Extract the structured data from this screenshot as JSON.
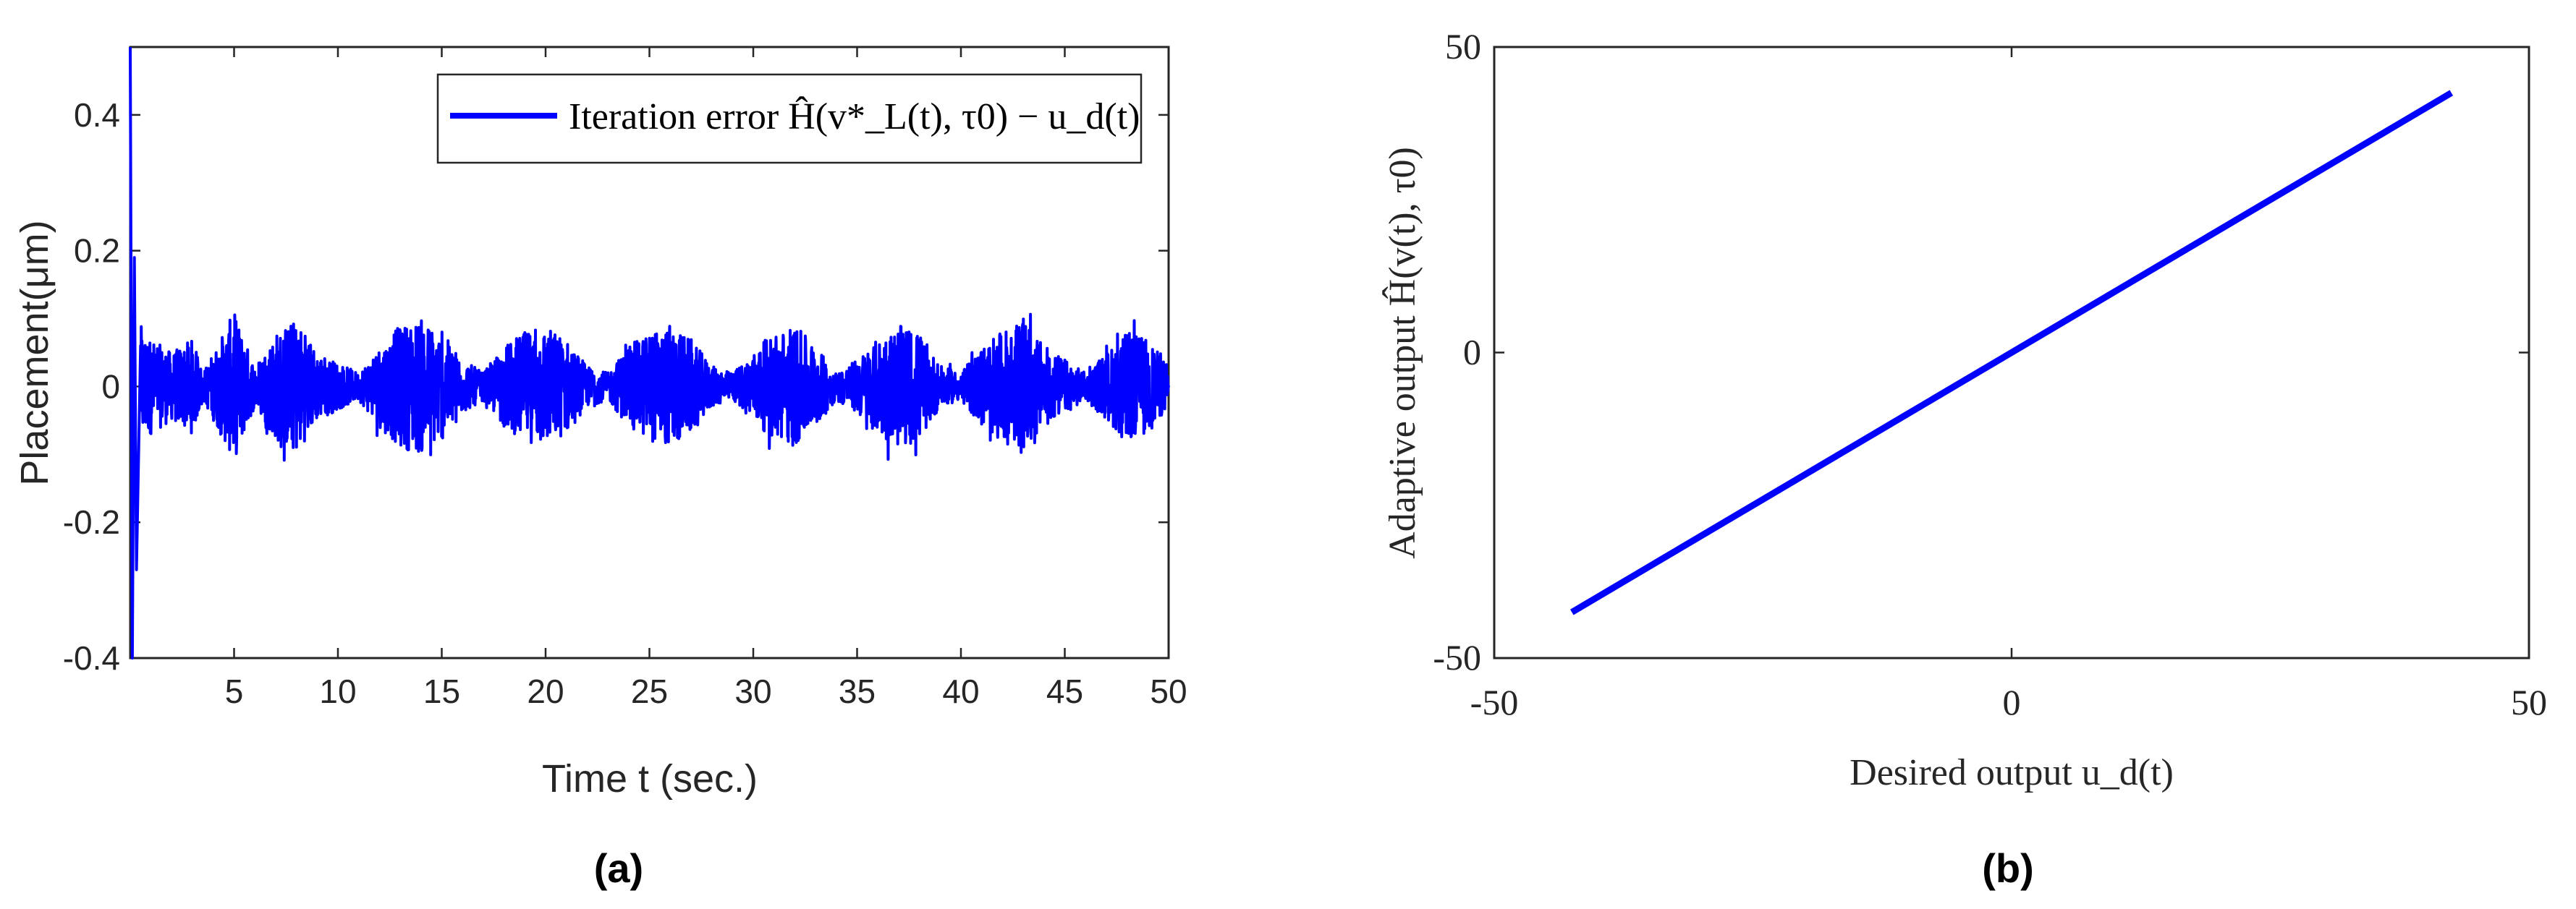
{
  "colors": {
    "series": "#0000FF",
    "axes": "#262626"
  },
  "chart_data": [
    {
      "panel_label": "(a)",
      "type": "line",
      "xlabel": "Time t (sec.)",
      "ylabel": "Placement(μm)",
      "xlim": [
        0,
        50
      ],
      "ylim": [
        -0.4,
        0.5
      ],
      "xticks": [
        5,
        10,
        15,
        20,
        25,
        30,
        35,
        40,
        45,
        50
      ],
      "xtick_labels": [
        "5",
        "10",
        "15",
        "20",
        "25",
        "30",
        "35",
        "40",
        "45",
        "50"
      ],
      "yticks": [
        -0.4,
        -0.2,
        0,
        0.2,
        0.4
      ],
      "ytick_labels": [
        "-0.4",
        "-0.2",
        "0",
        "0.2",
        "0.4"
      ],
      "legend": {
        "entry": "Iteration error Ĥ(v*_L(t), τ0) − u_d(t)",
        "placement": "top-right"
      },
      "series": [
        {
          "name": "Iteration error Ĥ(v*_L(t), τ0) − u_d(t)",
          "color": "#0000FF",
          "description": "oscillating error, initial transient spike to ±0.5 near t=0, then bursts with amplitude about ±0.1 recurring roughly every 6 s",
          "initial_transient": {
            "t": [
              0.0,
              0.1,
              0.2,
              0.3,
              0.5
            ],
            "y": [
              0.5,
              -0.4,
              0.19,
              -0.27,
              0.06
            ]
          },
          "burst_envelope": {
            "t": [
              0.5,
              1,
              2,
              3,
              3.5,
              5,
              6,
              7,
              8,
              9,
              11,
              12,
              13,
              14,
              15,
              16,
              17,
              18,
              19,
              20,
              21,
              22,
              23,
              24,
              25,
              26,
              27,
              28,
              29,
              30,
              31,
              32,
              33,
              34,
              35,
              36,
              37,
              38,
              39,
              40,
              41,
              42,
              43,
              44,
              45,
              46,
              47,
              48,
              49,
              50
            ],
            "amplitude": [
              0.09,
              0.07,
              0.05,
              0.07,
              0.02,
              0.11,
              0.03,
              0.08,
              0.1,
              0.05,
              0.02,
              0.06,
              0.09,
              0.1,
              0.08,
              0.04,
              0.02,
              0.06,
              0.08,
              0.09,
              0.07,
              0.03,
              0.02,
              0.06,
              0.08,
              0.09,
              0.07,
              0.03,
              0.02,
              0.05,
              0.08,
              0.09,
              0.06,
              0.02,
              0.04,
              0.07,
              0.09,
              0.08,
              0.03,
              0.02,
              0.06,
              0.08,
              0.1,
              0.06,
              0.04,
              0.02,
              0.05,
              0.08,
              0.07,
              0.03
            ]
          }
        }
      ]
    },
    {
      "panel_label": "(b)",
      "type": "line",
      "xlabel": "Desired output u_d(t)",
      "ylabel": "Adaptive output Ĥ(v(t), τ0)",
      "xlim": [
        -50,
        50
      ],
      "ylim": [
        -50,
        50
      ],
      "xticks": [
        -50,
        0,
        50
      ],
      "xtick_labels": [
        "-50",
        "0",
        "50"
      ],
      "yticks": [
        -50,
        0,
        50
      ],
      "ytick_labels": [
        "-50",
        "0",
        "50"
      ],
      "series": [
        {
          "name": "",
          "color": "#0000FF",
          "x": [
            -42.5,
            -32,
            -20,
            -10,
            0,
            10,
            20,
            32,
            42.5
          ],
          "y": [
            -42.5,
            -32,
            -20,
            -10,
            0,
            10,
            20,
            32,
            42.5
          ]
        }
      ]
    }
  ]
}
